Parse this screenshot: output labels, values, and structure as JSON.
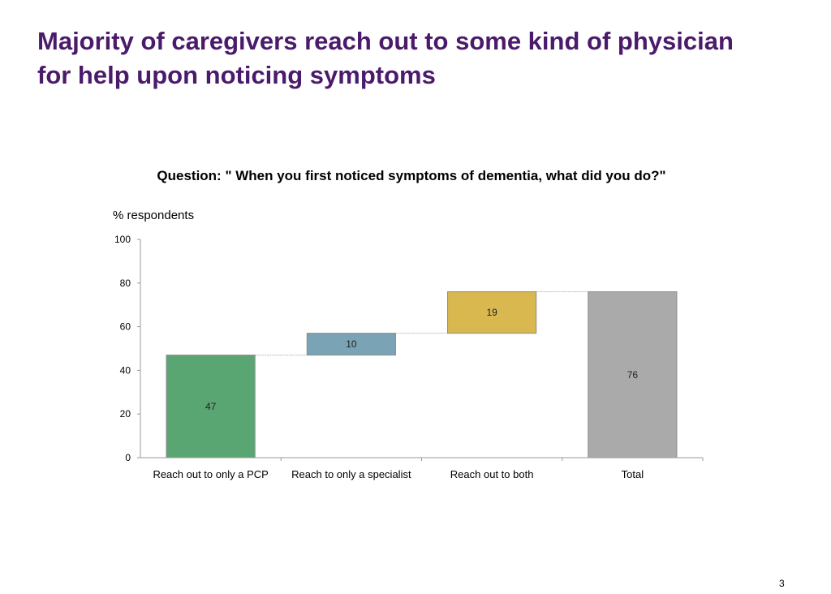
{
  "slide": {
    "title_line1": "Majority of caregivers reach out to some kind of physician",
    "title_line2": "for help upon noticing symptoms",
    "question": "Question: \" When you first noticed symptoms of dementia, what did you do?\"",
    "page_number": "3"
  },
  "chart_data": {
    "type": "bar",
    "subtype": "waterfall",
    "ylabel": "% respondents",
    "ylim": [
      0,
      100
    ],
    "yticks": [
      0,
      20,
      40,
      60,
      80,
      100
    ],
    "grid": false,
    "categories": [
      "Reach out to only a PCP",
      "Reach to only a specialist",
      "Reach out to both",
      "Total"
    ],
    "values": [
      47,
      10,
      19,
      76
    ],
    "bases": [
      0,
      47,
      57,
      0
    ],
    "colors": [
      "#5aa673",
      "#7aa3b5",
      "#d9b84f",
      "#aaaaaa"
    ]
  }
}
